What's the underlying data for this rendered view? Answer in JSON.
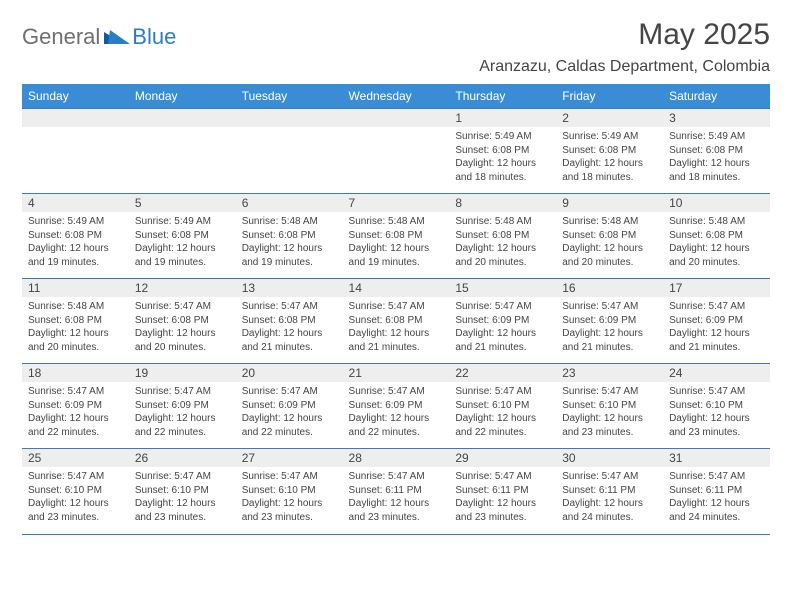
{
  "brand": {
    "general": "General",
    "blue": "Blue"
  },
  "header": {
    "month_title": "May 2025",
    "location": "Aranzazu, Caldas Department, Colombia"
  },
  "colors": {
    "header_bg": "#3a8cd4",
    "header_text": "#ffffff",
    "daynum_bg": "#eeeeee",
    "text": "#454545",
    "rule": "#3a7bbd",
    "brand_gray": "#6f6f6f",
    "brand_blue": "#2a7ec6"
  },
  "weekdays": [
    "Sunday",
    "Monday",
    "Tuesday",
    "Wednesday",
    "Thursday",
    "Friday",
    "Saturday"
  ],
  "weeks": [
    [
      null,
      null,
      null,
      null,
      {
        "n": "1",
        "sr": "Sunrise: 5:49 AM",
        "ss": "Sunset: 6:08 PM",
        "dl": "Daylight: 12 hours and 18 minutes."
      },
      {
        "n": "2",
        "sr": "Sunrise: 5:49 AM",
        "ss": "Sunset: 6:08 PM",
        "dl": "Daylight: 12 hours and 18 minutes."
      },
      {
        "n": "3",
        "sr": "Sunrise: 5:49 AM",
        "ss": "Sunset: 6:08 PM",
        "dl": "Daylight: 12 hours and 18 minutes."
      }
    ],
    [
      {
        "n": "4",
        "sr": "Sunrise: 5:49 AM",
        "ss": "Sunset: 6:08 PM",
        "dl": "Daylight: 12 hours and 19 minutes."
      },
      {
        "n": "5",
        "sr": "Sunrise: 5:49 AM",
        "ss": "Sunset: 6:08 PM",
        "dl": "Daylight: 12 hours and 19 minutes."
      },
      {
        "n": "6",
        "sr": "Sunrise: 5:48 AM",
        "ss": "Sunset: 6:08 PM",
        "dl": "Daylight: 12 hours and 19 minutes."
      },
      {
        "n": "7",
        "sr": "Sunrise: 5:48 AM",
        "ss": "Sunset: 6:08 PM",
        "dl": "Daylight: 12 hours and 19 minutes."
      },
      {
        "n": "8",
        "sr": "Sunrise: 5:48 AM",
        "ss": "Sunset: 6:08 PM",
        "dl": "Daylight: 12 hours and 20 minutes."
      },
      {
        "n": "9",
        "sr": "Sunrise: 5:48 AM",
        "ss": "Sunset: 6:08 PM",
        "dl": "Daylight: 12 hours and 20 minutes."
      },
      {
        "n": "10",
        "sr": "Sunrise: 5:48 AM",
        "ss": "Sunset: 6:08 PM",
        "dl": "Daylight: 12 hours and 20 minutes."
      }
    ],
    [
      {
        "n": "11",
        "sr": "Sunrise: 5:48 AM",
        "ss": "Sunset: 6:08 PM",
        "dl": "Daylight: 12 hours and 20 minutes."
      },
      {
        "n": "12",
        "sr": "Sunrise: 5:47 AM",
        "ss": "Sunset: 6:08 PM",
        "dl": "Daylight: 12 hours and 20 minutes."
      },
      {
        "n": "13",
        "sr": "Sunrise: 5:47 AM",
        "ss": "Sunset: 6:08 PM",
        "dl": "Daylight: 12 hours and 21 minutes."
      },
      {
        "n": "14",
        "sr": "Sunrise: 5:47 AM",
        "ss": "Sunset: 6:08 PM",
        "dl": "Daylight: 12 hours and 21 minutes."
      },
      {
        "n": "15",
        "sr": "Sunrise: 5:47 AM",
        "ss": "Sunset: 6:09 PM",
        "dl": "Daylight: 12 hours and 21 minutes."
      },
      {
        "n": "16",
        "sr": "Sunrise: 5:47 AM",
        "ss": "Sunset: 6:09 PM",
        "dl": "Daylight: 12 hours and 21 minutes."
      },
      {
        "n": "17",
        "sr": "Sunrise: 5:47 AM",
        "ss": "Sunset: 6:09 PM",
        "dl": "Daylight: 12 hours and 21 minutes."
      }
    ],
    [
      {
        "n": "18",
        "sr": "Sunrise: 5:47 AM",
        "ss": "Sunset: 6:09 PM",
        "dl": "Daylight: 12 hours and 22 minutes."
      },
      {
        "n": "19",
        "sr": "Sunrise: 5:47 AM",
        "ss": "Sunset: 6:09 PM",
        "dl": "Daylight: 12 hours and 22 minutes."
      },
      {
        "n": "20",
        "sr": "Sunrise: 5:47 AM",
        "ss": "Sunset: 6:09 PM",
        "dl": "Daylight: 12 hours and 22 minutes."
      },
      {
        "n": "21",
        "sr": "Sunrise: 5:47 AM",
        "ss": "Sunset: 6:09 PM",
        "dl": "Daylight: 12 hours and 22 minutes."
      },
      {
        "n": "22",
        "sr": "Sunrise: 5:47 AM",
        "ss": "Sunset: 6:10 PM",
        "dl": "Daylight: 12 hours and 22 minutes."
      },
      {
        "n": "23",
        "sr": "Sunrise: 5:47 AM",
        "ss": "Sunset: 6:10 PM",
        "dl": "Daylight: 12 hours and 23 minutes."
      },
      {
        "n": "24",
        "sr": "Sunrise: 5:47 AM",
        "ss": "Sunset: 6:10 PM",
        "dl": "Daylight: 12 hours and 23 minutes."
      }
    ],
    [
      {
        "n": "25",
        "sr": "Sunrise: 5:47 AM",
        "ss": "Sunset: 6:10 PM",
        "dl": "Daylight: 12 hours and 23 minutes."
      },
      {
        "n": "26",
        "sr": "Sunrise: 5:47 AM",
        "ss": "Sunset: 6:10 PM",
        "dl": "Daylight: 12 hours and 23 minutes."
      },
      {
        "n": "27",
        "sr": "Sunrise: 5:47 AM",
        "ss": "Sunset: 6:10 PM",
        "dl": "Daylight: 12 hours and 23 minutes."
      },
      {
        "n": "28",
        "sr": "Sunrise: 5:47 AM",
        "ss": "Sunset: 6:11 PM",
        "dl": "Daylight: 12 hours and 23 minutes."
      },
      {
        "n": "29",
        "sr": "Sunrise: 5:47 AM",
        "ss": "Sunset: 6:11 PM",
        "dl": "Daylight: 12 hours and 23 minutes."
      },
      {
        "n": "30",
        "sr": "Sunrise: 5:47 AM",
        "ss": "Sunset: 6:11 PM",
        "dl": "Daylight: 12 hours and 24 minutes."
      },
      {
        "n": "31",
        "sr": "Sunrise: 5:47 AM",
        "ss": "Sunset: 6:11 PM",
        "dl": "Daylight: 12 hours and 24 minutes."
      }
    ]
  ]
}
